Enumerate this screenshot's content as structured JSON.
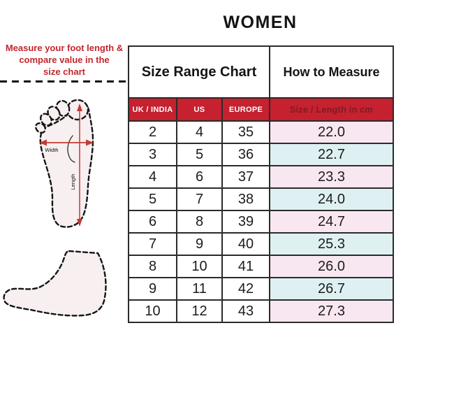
{
  "title": "WOMEN",
  "instruction": {
    "lines": [
      "Measure your foot length &",
      "compare value in the",
      "size chart"
    ]
  },
  "foot_diagram": {
    "width_label": "Width",
    "length_label": "Length"
  },
  "table": {
    "group_headers": {
      "size_range": "Size Range Chart",
      "how_to_measure": "How to Measure"
    },
    "columns": [
      "UK / INDIA",
      "US",
      "EUROPE",
      "Size / Length in cm"
    ],
    "rows": [
      {
        "uk_india": "2",
        "us": "4",
        "europe": "35",
        "length_cm": "22.0"
      },
      {
        "uk_india": "3",
        "us": "5",
        "europe": "36",
        "length_cm": "22.7"
      },
      {
        "uk_india": "4",
        "us": "6",
        "europe": "37",
        "length_cm": "23.3"
      },
      {
        "uk_india": "5",
        "us": "7",
        "europe": "38",
        "length_cm": "24.0"
      },
      {
        "uk_india": "6",
        "us": "8",
        "europe": "39",
        "length_cm": "24.7"
      },
      {
        "uk_india": "7",
        "us": "9",
        "europe": "40",
        "length_cm": "25.3"
      },
      {
        "uk_india": "8",
        "us": "10",
        "europe": "41",
        "length_cm": "26.0"
      },
      {
        "uk_india": "9",
        "us": "11",
        "europe": "42",
        "length_cm": "26.7"
      },
      {
        "uk_india": "10",
        "us": "12",
        "europe": "43",
        "length_cm": "27.3"
      }
    ]
  },
  "chart_data": {
    "type": "table",
    "title": "WOMEN",
    "columns": [
      "UK / INDIA",
      "US",
      "EUROPE",
      "Size / Length in cm"
    ],
    "rows": [
      [
        "2",
        "4",
        "35",
        "22.0"
      ],
      [
        "3",
        "5",
        "36",
        "22.7"
      ],
      [
        "4",
        "6",
        "37",
        "23.3"
      ],
      [
        "5",
        "7",
        "38",
        "24.0"
      ],
      [
        "6",
        "8",
        "39",
        "24.7"
      ],
      [
        "7",
        "9",
        "40",
        "25.3"
      ],
      [
        "8",
        "10",
        "41",
        "26.0"
      ],
      [
        "9",
        "11",
        "42",
        "26.7"
      ],
      [
        "10",
        "12",
        "43",
        "27.3"
      ]
    ]
  },
  "colors": {
    "brand_red": "#C5212F",
    "instruction_red": "#C1272D",
    "maroon_text": "#7D1B26",
    "row_pink": "#F8E7F0",
    "row_blue": "#DEF0F2",
    "foot_fill": "#F7EFF0",
    "arrow_red": "#C23B34",
    "border_dark": "#2B2B2B"
  }
}
